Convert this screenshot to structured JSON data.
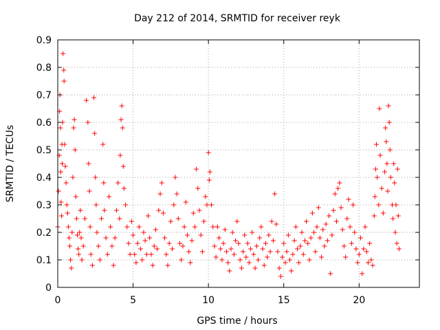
{
  "chart_data": {
    "type": "scatter",
    "title": "Day 212 of 2014, SRMTID for receiver reyk",
    "xlabel": "GPS time / hours",
    "ylabel": "SRMTID / TECUs",
    "xlim": [
      0,
      24
    ],
    "ylim": [
      0,
      0.9
    ],
    "x_ticks": [
      0,
      5,
      10,
      15,
      20
    ],
    "x_tick_labels": [
      "0",
      "5",
      "10",
      "15",
      "20"
    ],
    "y_ticks": [
      0,
      0.1,
      0.2,
      0.3,
      0.4,
      0.5,
      0.6,
      0.7,
      0.8,
      0.9
    ],
    "y_tick_labels": [
      "0",
      "0.1",
      "0.2",
      "0.3",
      "0.4",
      "0.5",
      "0.6",
      "0.7",
      "0.8",
      "0.9"
    ],
    "grid": true,
    "marker": "+",
    "color": "#ff0000",
    "series": [
      {
        "name": "SRMTID",
        "points": [
          [
            0.0,
            0.22
          ],
          [
            0.05,
            0.35
          ],
          [
            0.1,
            0.48
          ],
          [
            0.12,
            0.64
          ],
          [
            0.15,
            0.7
          ],
          [
            0.18,
            0.58
          ],
          [
            0.2,
            0.42
          ],
          [
            0.22,
            0.31
          ],
          [
            0.25,
            0.26
          ],
          [
            0.28,
            0.52
          ],
          [
            0.3,
            0.45
          ],
          [
            0.32,
            0.6
          ],
          [
            0.35,
            0.85
          ],
          [
            0.4,
            0.79
          ],
          [
            0.42,
            0.75
          ],
          [
            0.45,
            0.52
          ],
          [
            0.5,
            0.44
          ],
          [
            0.55,
            0.38
          ],
          [
            0.6,
            0.3
          ],
          [
            0.65,
            0.27
          ],
          [
            0.7,
            0.22
          ],
          [
            0.75,
            0.18
          ],
          [
            0.8,
            0.15
          ],
          [
            0.85,
            0.1
          ],
          [
            0.9,
            0.07
          ],
          [
            0.95,
            0.2
          ],
          [
            1.0,
            0.4
          ],
          [
            1.05,
            0.58
          ],
          [
            1.1,
            0.61
          ],
          [
            1.15,
            0.5
          ],
          [
            1.2,
            0.33
          ],
          [
            1.25,
            0.25
          ],
          [
            1.3,
            0.19
          ],
          [
            1.35,
            0.14
          ],
          [
            1.4,
            0.12
          ],
          [
            1.45,
            0.2
          ],
          [
            1.5,
            0.28
          ],
          [
            1.55,
            0.18
          ],
          [
            1.6,
            0.1
          ],
          [
            1.7,
            0.15
          ],
          [
            1.8,
            0.25
          ],
          [
            1.9,
            0.68
          ],
          [
            2.0,
            0.6
          ],
          [
            2.05,
            0.45
          ],
          [
            2.1,
            0.35
          ],
          [
            2.15,
            0.22
          ],
          [
            2.2,
            0.12
          ],
          [
            2.3,
            0.08
          ],
          [
            2.4,
            0.69
          ],
          [
            2.45,
            0.56
          ],
          [
            2.5,
            0.4
          ],
          [
            2.55,
            0.3
          ],
          [
            2.6,
            0.2
          ],
          [
            2.7,
            0.15
          ],
          [
            2.8,
            0.1
          ],
          [
            2.9,
            0.25
          ],
          [
            3.0,
            0.52
          ],
          [
            3.05,
            0.38
          ],
          [
            3.1,
            0.28
          ],
          [
            3.2,
            0.18
          ],
          [
            3.3,
            0.12
          ],
          [
            3.4,
            0.33
          ],
          [
            3.5,
            0.22
          ],
          [
            3.6,
            0.15
          ],
          [
            3.7,
            0.08
          ],
          [
            3.8,
            0.18
          ],
          [
            3.9,
            0.28
          ],
          [
            4.0,
            0.38
          ],
          [
            4.1,
            0.25
          ],
          [
            4.15,
            0.48
          ],
          [
            4.2,
            0.61
          ],
          [
            4.25,
            0.66
          ],
          [
            4.3,
            0.58
          ],
          [
            4.35,
            0.44
          ],
          [
            4.4,
            0.36
          ],
          [
            4.5,
            0.3
          ],
          [
            4.6,
            0.22
          ],
          [
            4.7,
            0.16
          ],
          [
            4.8,
            0.12
          ],
          [
            4.9,
            0.24
          ],
          [
            5.0,
            0.19
          ],
          [
            5.1,
            0.12
          ],
          [
            5.2,
            0.09
          ],
          [
            5.3,
            0.16
          ],
          [
            5.4,
            0.22
          ],
          [
            5.5,
            0.14
          ],
          [
            5.6,
            0.1
          ],
          [
            5.7,
            0.2
          ],
          [
            5.8,
            0.17
          ],
          [
            5.9,
            0.12
          ],
          [
            6.0,
            0.26
          ],
          [
            6.1,
            0.18
          ],
          [
            6.2,
            0.12
          ],
          [
            6.3,
            0.08
          ],
          [
            6.4,
            0.15
          ],
          [
            6.5,
            0.21
          ],
          [
            6.6,
            0.14
          ],
          [
            6.7,
            0.28
          ],
          [
            6.8,
            0.34
          ],
          [
            6.9,
            0.38
          ],
          [
            7.0,
            0.27
          ],
          [
            7.1,
            0.18
          ],
          [
            7.2,
            0.12
          ],
          [
            7.3,
            0.08
          ],
          [
            7.4,
            0.16
          ],
          [
            7.5,
            0.24
          ],
          [
            7.6,
            0.14
          ],
          [
            7.7,
            0.3
          ],
          [
            7.8,
            0.4
          ],
          [
            7.9,
            0.34
          ],
          [
            8.0,
            0.25
          ],
          [
            8.1,
            0.16
          ],
          [
            8.2,
            0.1
          ],
          [
            8.3,
            0.15
          ],
          [
            8.4,
            0.22
          ],
          [
            8.5,
            0.31
          ],
          [
            8.6,
            0.19
          ],
          [
            8.7,
            0.13
          ],
          [
            8.8,
            0.09
          ],
          [
            8.9,
            0.17
          ],
          [
            9.0,
            0.27
          ],
          [
            9.1,
            0.22
          ],
          [
            9.2,
            0.43
          ],
          [
            9.3,
            0.36
          ],
          [
            9.4,
            0.28
          ],
          [
            9.5,
            0.19
          ],
          [
            9.6,
            0.13
          ],
          [
            9.7,
            0.24
          ],
          [
            9.8,
            0.33
          ],
          [
            9.9,
            0.3
          ],
          [
            10.0,
            0.49
          ],
          [
            10.05,
            0.39
          ],
          [
            10.1,
            0.42
          ],
          [
            10.2,
            0.3
          ],
          [
            10.3,
            0.22
          ],
          [
            10.4,
            0.15
          ],
          [
            10.5,
            0.11
          ],
          [
            10.6,
            0.22
          ],
          [
            10.7,
            0.18
          ],
          [
            10.8,
            0.14
          ],
          [
            10.9,
            0.1
          ],
          [
            11.0,
            0.16
          ],
          [
            11.1,
            0.21
          ],
          [
            11.2,
            0.13
          ],
          [
            11.3,
            0.09
          ],
          [
            11.4,
            0.06
          ],
          [
            11.5,
            0.14
          ],
          [
            11.6,
            0.2
          ],
          [
            11.7,
            0.12
          ],
          [
            11.8,
            0.17
          ],
          [
            11.9,
            0.24
          ],
          [
            12.0,
            0.16
          ],
          [
            12.1,
            0.1
          ],
          [
            12.2,
            0.07
          ],
          [
            12.3,
            0.13
          ],
          [
            12.4,
            0.19
          ],
          [
            12.5,
            0.11
          ],
          [
            12.6,
            0.16
          ],
          [
            12.7,
            0.09
          ],
          [
            12.8,
            0.14
          ],
          [
            12.9,
            0.2
          ],
          [
            13.0,
            0.12
          ],
          [
            13.1,
            0.07
          ],
          [
            13.2,
            0.15
          ],
          [
            13.3,
            0.1
          ],
          [
            13.4,
            0.18
          ],
          [
            13.5,
            0.22
          ],
          [
            13.6,
            0.14
          ],
          [
            13.7,
            0.08
          ],
          [
            13.8,
            0.16
          ],
          [
            13.9,
            0.11
          ],
          [
            14.0,
            0.19
          ],
          [
            14.1,
            0.13
          ],
          [
            14.2,
            0.24
          ],
          [
            14.3,
            0.17
          ],
          [
            14.4,
            0.34
          ],
          [
            14.5,
            0.23
          ],
          [
            14.6,
            0.13
          ],
          [
            14.7,
            0.07
          ],
          [
            14.8,
            0.04
          ],
          [
            14.9,
            0.11
          ],
          [
            15.0,
            0.16
          ],
          [
            15.1,
            0.09
          ],
          [
            15.2,
            0.13
          ],
          [
            15.3,
            0.19
          ],
          [
            15.4,
            0.1
          ],
          [
            15.5,
            0.06
          ],
          [
            15.6,
            0.12
          ],
          [
            15.7,
            0.17
          ],
          [
            15.8,
            0.22
          ],
          [
            15.9,
            0.14
          ],
          [
            16.0,
            0.09
          ],
          [
            16.1,
            0.15
          ],
          [
            16.2,
            0.2
          ],
          [
            16.3,
            0.12
          ],
          [
            16.4,
            0.17
          ],
          [
            16.5,
            0.24
          ],
          [
            16.6,
            0.16
          ],
          [
            16.7,
            0.1
          ],
          [
            16.8,
            0.18
          ],
          [
            16.9,
            0.27
          ],
          [
            17.0,
            0.2
          ],
          [
            17.1,
            0.13
          ],
          [
            17.2,
            0.22
          ],
          [
            17.3,
            0.29
          ],
          [
            17.4,
            0.18
          ],
          [
            17.5,
            0.11
          ],
          [
            17.6,
            0.21
          ],
          [
            17.7,
            0.15
          ],
          [
            17.8,
            0.23
          ],
          [
            17.9,
            0.17
          ],
          [
            18.0,
            0.26
          ],
          [
            18.1,
            0.05
          ],
          [
            18.2,
            0.19
          ],
          [
            18.3,
            0.28
          ],
          [
            18.4,
            0.34
          ],
          [
            18.5,
            0.24
          ],
          [
            18.6,
            0.36
          ],
          [
            18.7,
            0.38
          ],
          [
            18.8,
            0.29
          ],
          [
            18.9,
            0.21
          ],
          [
            19.0,
            0.15
          ],
          [
            19.1,
            0.11
          ],
          [
            19.2,
            0.25
          ],
          [
            19.3,
            0.32
          ],
          [
            19.4,
            0.22
          ],
          [
            19.5,
            0.16
          ],
          [
            19.6,
            0.3
          ],
          [
            19.7,
            0.2
          ],
          [
            19.8,
            0.14
          ],
          [
            19.9,
            0.09
          ],
          [
            20.0,
            0.12
          ],
          [
            20.1,
            0.18
          ],
          [
            20.2,
            0.05
          ],
          [
            20.3,
            0.14
          ],
          [
            20.4,
            0.22
          ],
          [
            20.5,
            0.13
          ],
          [
            20.6,
            0.09
          ],
          [
            20.7,
            0.16
          ],
          [
            20.8,
            0.1
          ],
          [
            20.9,
            0.08
          ],
          [
            21.0,
            0.26
          ],
          [
            21.05,
            0.33
          ],
          [
            21.1,
            0.43
          ],
          [
            21.15,
            0.52
          ],
          [
            21.2,
            0.4
          ],
          [
            21.3,
            0.3
          ],
          [
            21.35,
            0.65
          ],
          [
            21.4,
            0.48
          ],
          [
            21.5,
            0.36
          ],
          [
            21.6,
            0.27
          ],
          [
            21.7,
            0.42
          ],
          [
            21.75,
            0.58
          ],
          [
            21.8,
            0.53
          ],
          [
            21.85,
            0.45
          ],
          [
            21.9,
            0.35
          ],
          [
            21.95,
            0.66
          ],
          [
            22.0,
            0.6
          ],
          [
            22.05,
            0.5
          ],
          [
            22.1,
            0.4
          ],
          [
            22.2,
            0.3
          ],
          [
            22.25,
            0.25
          ],
          [
            22.3,
            0.45
          ],
          [
            22.35,
            0.38
          ],
          [
            22.4,
            0.2
          ],
          [
            22.45,
            0.3
          ],
          [
            22.5,
            0.16
          ],
          [
            22.55,
            0.43
          ],
          [
            22.6,
            0.26
          ],
          [
            22.65,
            0.14
          ]
        ]
      }
    ]
  }
}
